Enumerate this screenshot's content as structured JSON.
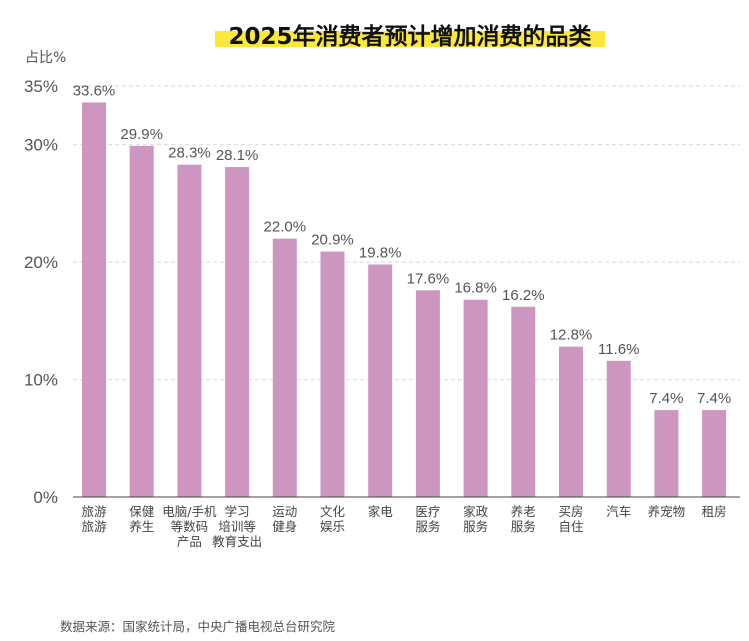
{
  "chart_data": {
    "type": "bar",
    "title": "2025年消费者预计增加消费的品类",
    "ylabel": "占比%",
    "xlabel": "",
    "ylim": [
      0,
      35
    ],
    "yticks": [
      "0%",
      "10%",
      "20%",
      "30%",
      "35%"
    ],
    "ytick_values": [
      0,
      10,
      20,
      30,
      35
    ],
    "grid": true,
    "categories": [
      [
        "旅游",
        "旅游"
      ],
      [
        "保健",
        "养生"
      ],
      [
        "电脑/手机",
        "等数码",
        "产品"
      ],
      [
        "学习",
        "培训等",
        "教育支出"
      ],
      [
        "运动",
        "健身"
      ],
      [
        "文化",
        "娱乐"
      ],
      [
        "家电"
      ],
      [
        "医疗",
        "服务"
      ],
      [
        "家政",
        "服务"
      ],
      [
        "养老",
        "服务"
      ],
      [
        "买房",
        "自住"
      ],
      [
        "汽车"
      ],
      [
        "养宠物"
      ],
      [
        "租房"
      ]
    ],
    "values": [
      33.6,
      29.9,
      28.3,
      28.1,
      22.0,
      20.9,
      19.8,
      17.6,
      16.8,
      16.2,
      12.8,
      11.6,
      7.4,
      7.4
    ],
    "value_labels": [
      "33.6%",
      "29.9%",
      "28.3%",
      "28.1%",
      "22.0%",
      "20.9%",
      "19.8%",
      "17.6%",
      "16.8%",
      "16.2%",
      "12.8%",
      "11.6%",
      "7.4%",
      "7.4%"
    ],
    "bar_color": "#cc96c0",
    "highlight_color": "#fbe83a",
    "source": "数据来源：国家统计局，中央广播电视总台研究院"
  }
}
